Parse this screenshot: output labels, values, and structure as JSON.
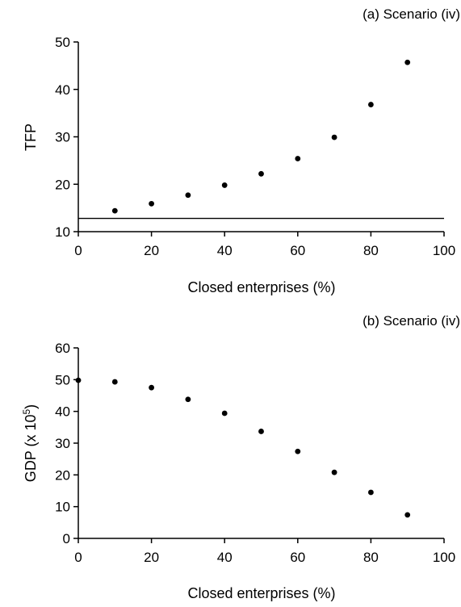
{
  "chart_data": [
    {
      "type": "scatter",
      "title": "(a) Scenario (iv)",
      "xlabel": "Closed enterprises (%)",
      "ylabel": "TFP",
      "xlim": [
        0,
        100
      ],
      "ylim": [
        10,
        50
      ],
      "xticks": [
        "0",
        "20",
        "40",
        "60",
        "80",
        "100"
      ],
      "yticks": [
        "10",
        "20",
        "30",
        "40",
        "50"
      ],
      "grid": false,
      "series": [
        {
          "x": [
            10,
            20,
            30,
            40,
            50,
            60,
            70,
            80,
            90
          ],
          "y": [
            14.4,
            15.9,
            17.7,
            19.8,
            22.2,
            25.4,
            29.9,
            36.8,
            45.7
          ]
        }
      ],
      "reference_line_y": 12.8
    },
    {
      "type": "scatter",
      "title": "(b) Scenario (iv)",
      "xlabel": "Closed enterprises (%)",
      "ylabel": "GDP (x 10",
      "ylabel_sup": "5",
      "ylabel_end": ")",
      "xlim": [
        0,
        100
      ],
      "ylim": [
        0,
        60
      ],
      "xticks": [
        "0",
        "20",
        "40",
        "60",
        "80",
        "100"
      ],
      "yticks": [
        "0",
        "10",
        "20",
        "30",
        "40",
        "50",
        "60"
      ],
      "grid": false,
      "series": [
        {
          "x": [
            0,
            10,
            20,
            30,
            40,
            50,
            60,
            70,
            80,
            90
          ],
          "y": [
            49.8,
            49.3,
            47.5,
            43.8,
            39.4,
            33.7,
            27.4,
            20.8,
            14.5,
            7.4
          ]
        }
      ]
    }
  ]
}
